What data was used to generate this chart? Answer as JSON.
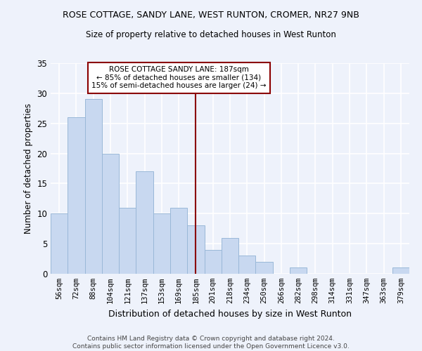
{
  "title": "ROSE COTTAGE, SANDY LANE, WEST RUNTON, CROMER, NR27 9NB",
  "subtitle": "Size of property relative to detached houses in West Runton",
  "xlabel": "Distribution of detached houses by size in West Runton",
  "ylabel": "Number of detached properties",
  "categories": [
    "56sqm",
    "72sqm",
    "88sqm",
    "104sqm",
    "121sqm",
    "137sqm",
    "153sqm",
    "169sqm",
    "185sqm",
    "201sqm",
    "218sqm",
    "234sqm",
    "250sqm",
    "266sqm",
    "282sqm",
    "298sqm",
    "314sqm",
    "331sqm",
    "347sqm",
    "363sqm",
    "379sqm"
  ],
  "values": [
    10,
    26,
    29,
    20,
    11,
    17,
    10,
    11,
    8,
    4,
    6,
    3,
    2,
    0,
    1,
    0,
    0,
    0,
    0,
    0,
    1
  ],
  "bar_color": "#c8d8f0",
  "bar_edgecolor": "#9ab8d8",
  "property_line_x": 8,
  "annotation_text": "ROSE COTTAGE SANDY LANE: 187sqm\n← 85% of detached houses are smaller (134)\n15% of semi-detached houses are larger (24) →",
  "vline_color": "#8b0000",
  "annotation_box_edgecolor": "#8b0000",
  "background_color": "#eef2fb",
  "plot_bg_color": "#eef2fb",
  "grid_color": "#ffffff",
  "footer_text": "Contains HM Land Registry data © Crown copyright and database right 2024.\nContains public sector information licensed under the Open Government Licence v3.0.",
  "ylim": [
    0,
    35
  ],
  "yticks": [
    0,
    5,
    10,
    15,
    20,
    25,
    30,
    35
  ]
}
